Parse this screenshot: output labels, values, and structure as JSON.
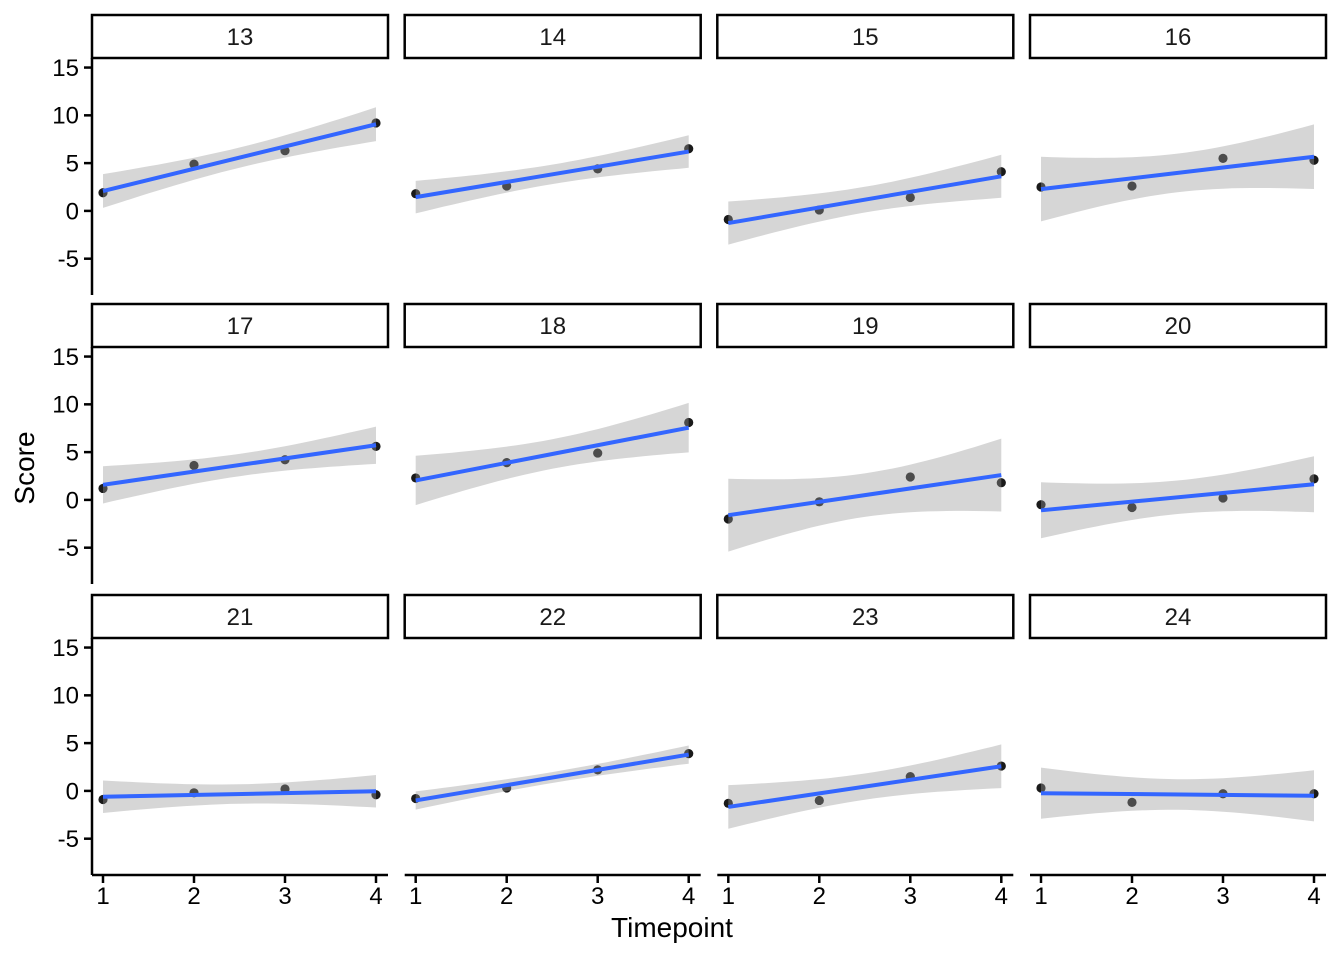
{
  "chart_data": {
    "type": "scatter",
    "title": "",
    "xlabel": "Timepoint",
    "ylabel": "Score",
    "facet_variable_values": [
      "13",
      "14",
      "15",
      "16",
      "17",
      "18",
      "19",
      "20",
      "21",
      "22",
      "23",
      "24"
    ],
    "x": [
      1,
      2,
      3,
      4
    ],
    "x_ticks": [
      "1",
      "2",
      "3",
      "4"
    ],
    "y_ticks": [
      "15",
      "10",
      "5",
      "0",
      "-5"
    ],
    "y_tick_values": [
      15,
      10,
      5,
      0,
      -5
    ],
    "xlim": [
      0.88,
      4.13
    ],
    "ylim": [
      -8.8,
      16.0
    ],
    "grid": false,
    "legend": false,
    "layout": "3 rows x 4 columns facet grid",
    "smooth": {
      "method": "lm",
      "ci_level": 0.95
    },
    "colors": {
      "line": "#3366FF",
      "band": "rgba(153,153,153,0.4)",
      "point": "#1a1a1a",
      "axis": "#000000",
      "strip_border": "#000000",
      "strip_fill": "#ffffff",
      "panel_background": "#ffffff"
    },
    "series": [
      {
        "name": "13",
        "x": [
          1,
          2,
          3,
          4
        ],
        "values": [
          1.9,
          4.9,
          6.3,
          9.2
        ]
      },
      {
        "name": "14",
        "x": [
          1,
          2,
          3,
          4
        ],
        "values": [
          1.8,
          2.6,
          4.4,
          6.5
        ]
      },
      {
        "name": "15",
        "x": [
          1,
          2,
          3,
          4
        ],
        "values": [
          -0.9,
          0.1,
          1.4,
          4.1
        ]
      },
      {
        "name": "16",
        "x": [
          1,
          2,
          3,
          4
        ],
        "values": [
          2.5,
          2.6,
          5.5,
          5.3
        ]
      },
      {
        "name": "17",
        "x": [
          1,
          2,
          3,
          4
        ],
        "values": [
          1.2,
          3.6,
          4.2,
          5.6
        ]
      },
      {
        "name": "18",
        "x": [
          1,
          2,
          3,
          4
        ],
        "values": [
          2.3,
          3.9,
          4.9,
          8.1
        ]
      },
      {
        "name": "19",
        "x": [
          1,
          2,
          3,
          4
        ],
        "values": [
          -2.0,
          -0.2,
          2.4,
          1.8
        ]
      },
      {
        "name": "20",
        "x": [
          1,
          2,
          3,
          4
        ],
        "values": [
          -0.5,
          -0.8,
          0.2,
          2.2
        ]
      },
      {
        "name": "21",
        "x": [
          1,
          2,
          3,
          4
        ],
        "values": [
          -0.9,
          -0.2,
          0.2,
          -0.4
        ]
      },
      {
        "name": "22",
        "x": [
          1,
          2,
          3,
          4
        ],
        "values": [
          -0.8,
          0.3,
          2.2,
          3.9
        ]
      },
      {
        "name": "23",
        "x": [
          1,
          2,
          3,
          4
        ],
        "values": [
          -1.3,
          -1.0,
          1.5,
          2.6
        ]
      },
      {
        "name": "24",
        "x": [
          1,
          2,
          3,
          4
        ],
        "values": [
          0.3,
          -1.2,
          -0.3,
          -0.3
        ]
      }
    ]
  }
}
